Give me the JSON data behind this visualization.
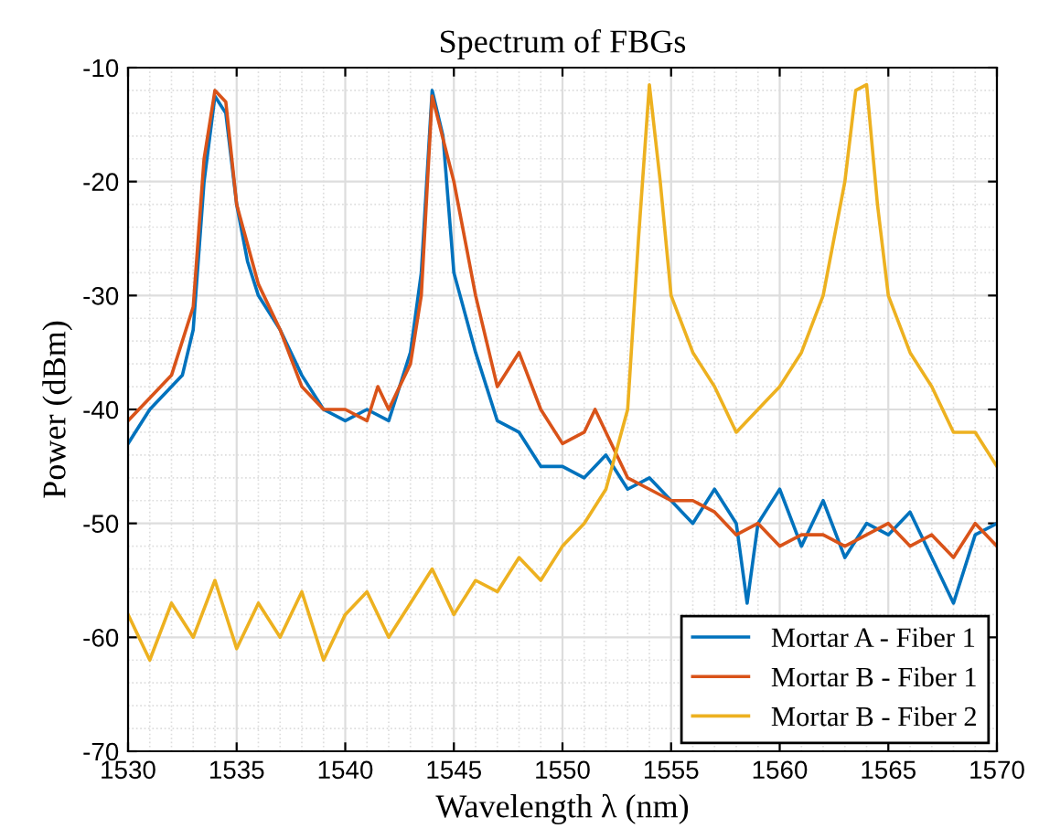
{
  "chart_data": {
    "type": "line",
    "title": "Spectrum of FBGs",
    "xlabel": "Wavelength λ (nm)",
    "ylabel": "Power (dBm)",
    "xlim": [
      1530,
      1570
    ],
    "xticks": [
      1530,
      1535,
      1540,
      1545,
      1550,
      1555,
      1560,
      1565,
      1570
    ],
    "ylim": [
      -70,
      -10
    ],
    "yticks": [
      -70,
      -60,
      -50,
      -40,
      -30,
      -20,
      -10
    ],
    "grid": true,
    "legend": "bottom right",
    "line_style": "solid",
    "series": [
      {
        "name": "Mortar A - Fiber 1",
        "color": "#0072bd",
        "x": [
          1530,
          1531,
          1532,
          1532.5,
          1533,
          1533.5,
          1534,
          1534.5,
          1535,
          1535.5,
          1536,
          1537,
          1538,
          1539,
          1540,
          1541,
          1542,
          1542.5,
          1543,
          1543.5,
          1544,
          1544.5,
          1545,
          1546,
          1547,
          1548,
          1549,
          1550,
          1551,
          1552,
          1553,
          1554,
          1555,
          1556,
          1557,
          1558,
          1558.5,
          1559,
          1560,
          1561,
          1562,
          1563,
          1564,
          1565,
          1566,
          1567,
          1568,
          1569,
          1570
        ],
        "values": [
          -43,
          -40,
          -38,
          -37,
          -33,
          -20,
          -12.5,
          -14,
          -22,
          -27,
          -30,
          -33,
          -37,
          -40,
          -41,
          -40,
          -41,
          -38,
          -35,
          -28,
          -12,
          -16,
          -28,
          -35,
          -41,
          -42,
          -45,
          -45,
          -46,
          -44,
          -47,
          -46,
          -48,
          -50,
          -47,
          -50,
          -57,
          -50,
          -47,
          -52,
          -48,
          -53,
          -50,
          -51,
          -49,
          -53,
          -57,
          -51,
          -50
        ]
      },
      {
        "name": "Mortar B - Fiber 1",
        "color": "#d95319",
        "x": [
          1530,
          1531,
          1532,
          1533,
          1533.5,
          1534,
          1534.5,
          1535,
          1536,
          1537,
          1538,
          1539,
          1540,
          1541,
          1541.5,
          1542,
          1543,
          1543.5,
          1544,
          1545,
          1546,
          1547,
          1548,
          1549,
          1550,
          1551,
          1551.5,
          1552,
          1553,
          1554,
          1555,
          1556,
          1557,
          1558,
          1559,
          1560,
          1561,
          1562,
          1563,
          1564,
          1565,
          1566,
          1567,
          1568,
          1569,
          1570
        ],
        "values": [
          -41,
          -39,
          -37,
          -31,
          -18,
          -12,
          -13,
          -22,
          -29,
          -33,
          -38,
          -40,
          -40,
          -41,
          -38,
          -40,
          -36,
          -30,
          -12.5,
          -20,
          -30,
          -38,
          -35,
          -40,
          -43,
          -42,
          -40,
          -42,
          -46,
          -47,
          -48,
          -48,
          -49,
          -51,
          -50,
          -52,
          -51,
          -51,
          -52,
          -51,
          -50,
          -52,
          -51,
          -53,
          -50,
          -52
        ]
      },
      {
        "name": "Mortar B - Fiber 2",
        "color": "#edb120",
        "x": [
          1530,
          1531,
          1532,
          1533,
          1534,
          1535,
          1536,
          1537,
          1538,
          1539,
          1540,
          1541,
          1542,
          1543,
          1544,
          1545,
          1546,
          1547,
          1548,
          1549,
          1550,
          1551,
          1552,
          1553,
          1553.5,
          1554,
          1554.5,
          1555,
          1556,
          1557,
          1558,
          1559,
          1560,
          1561,
          1562,
          1563,
          1563.5,
          1564,
          1564.5,
          1565,
          1566,
          1567,
          1568,
          1569,
          1570
        ],
        "values": [
          -58,
          -62,
          -57,
          -60,
          -55,
          -61,
          -57,
          -60,
          -56,
          -62,
          -58,
          -56,
          -60,
          -57,
          -54,
          -58,
          -55,
          -56,
          -53,
          -55,
          -52,
          -50,
          -47,
          -40,
          -25,
          -11.5,
          -20,
          -30,
          -35,
          -38,
          -42,
          -40,
          -38,
          -35,
          -30,
          -20,
          -12,
          -11.5,
          -22,
          -30,
          -35,
          -38,
          -42,
          -42,
          -45
        ]
      }
    ]
  }
}
